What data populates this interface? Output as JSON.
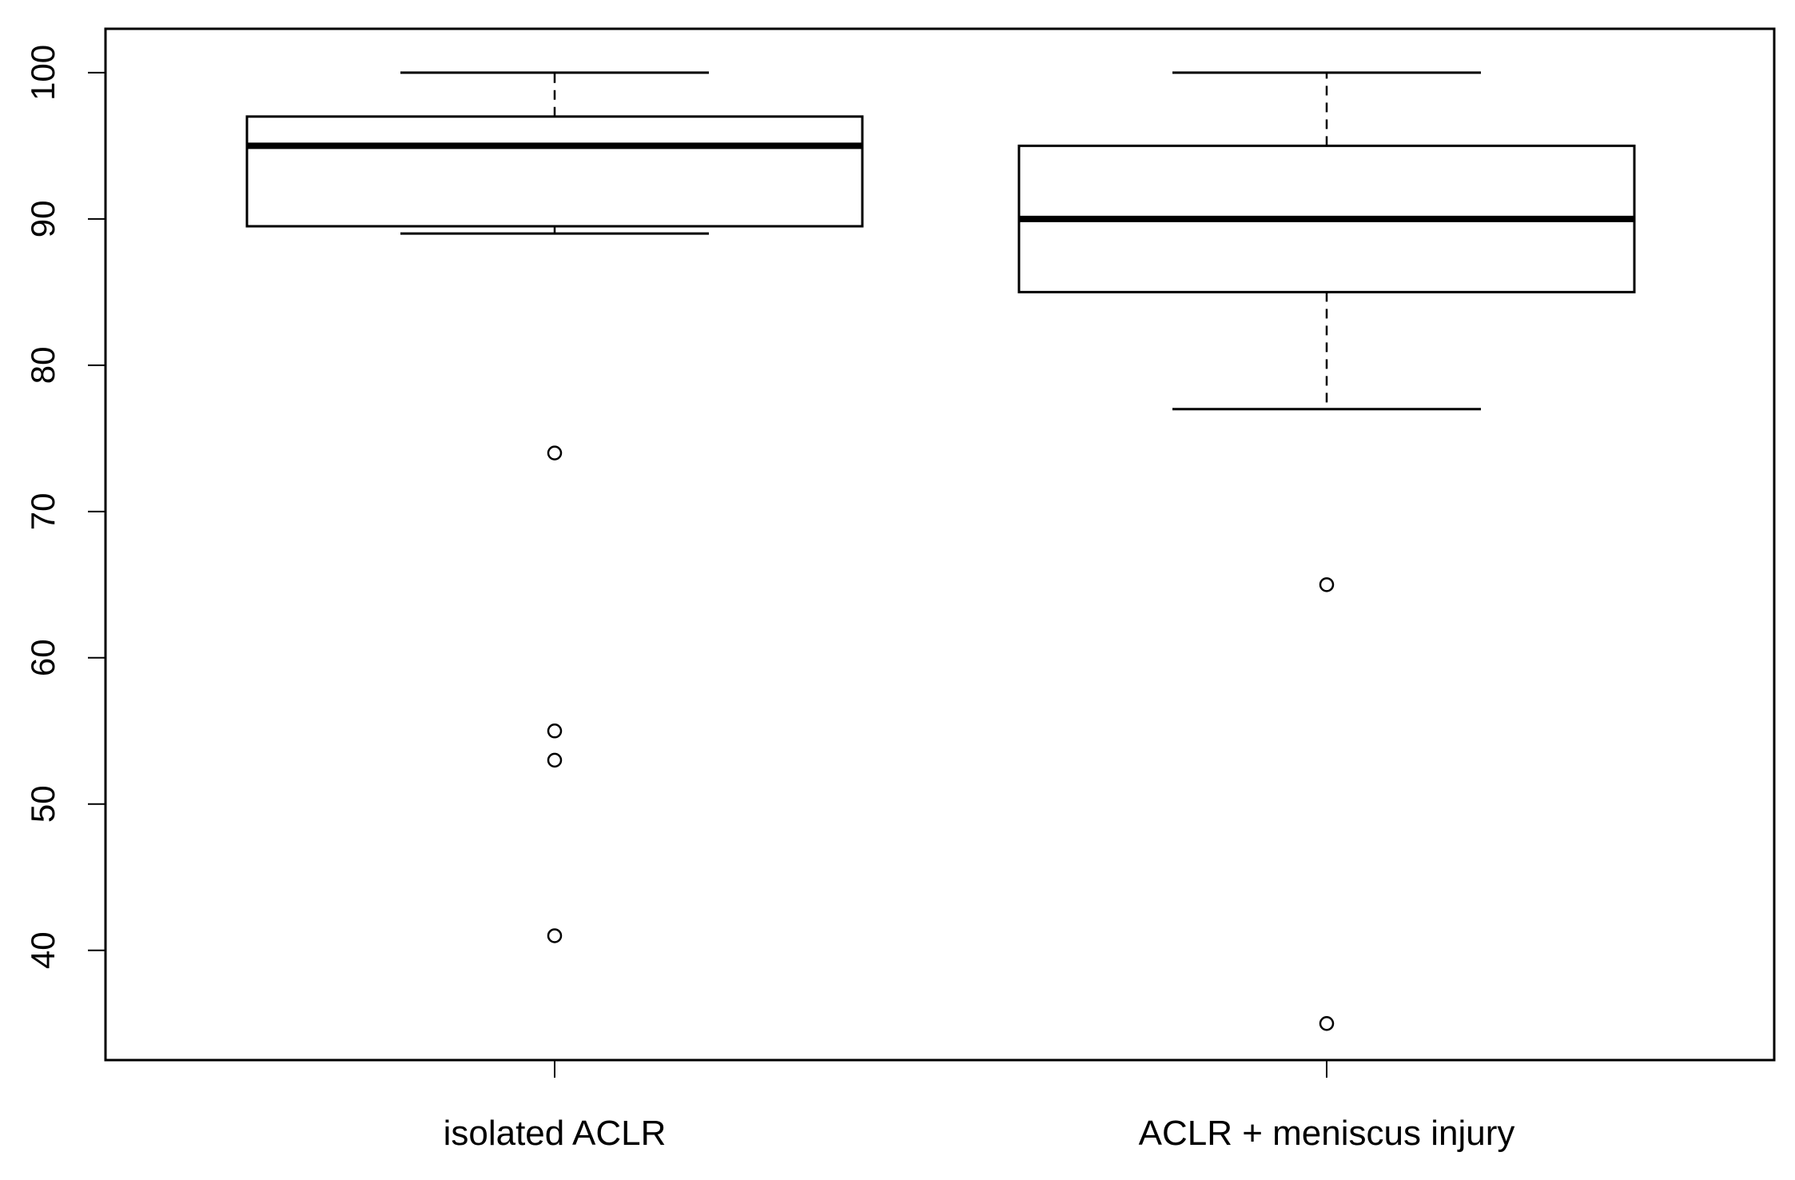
{
  "chart_data": {
    "type": "boxplot",
    "title": "",
    "xlabel": "",
    "ylabel": "",
    "ylim": [
      32.5,
      103
    ],
    "yticks": [
      40,
      50,
      60,
      70,
      80,
      90,
      100
    ],
    "ytick_labels": [
      "40",
      "50",
      "60",
      "70",
      "80",
      "90",
      "100"
    ],
    "grid": false,
    "legend": "none",
    "categories": [
      "isolated ACLR",
      "ACLR + meniscus injury"
    ],
    "boxes": [
      {
        "name": "isolated ACLR",
        "whisker_low": 89,
        "q1": 89.5,
        "median": 95,
        "q3": 97,
        "whisker_high": 100,
        "outliers": [
          74,
          55,
          53,
          41
        ]
      },
      {
        "name": "ACLR + meniscus injury",
        "whisker_low": 77,
        "q1": 85,
        "median": 90,
        "q3": 95,
        "whisker_high": 100,
        "outliers": [
          65,
          35
        ]
      }
    ]
  }
}
